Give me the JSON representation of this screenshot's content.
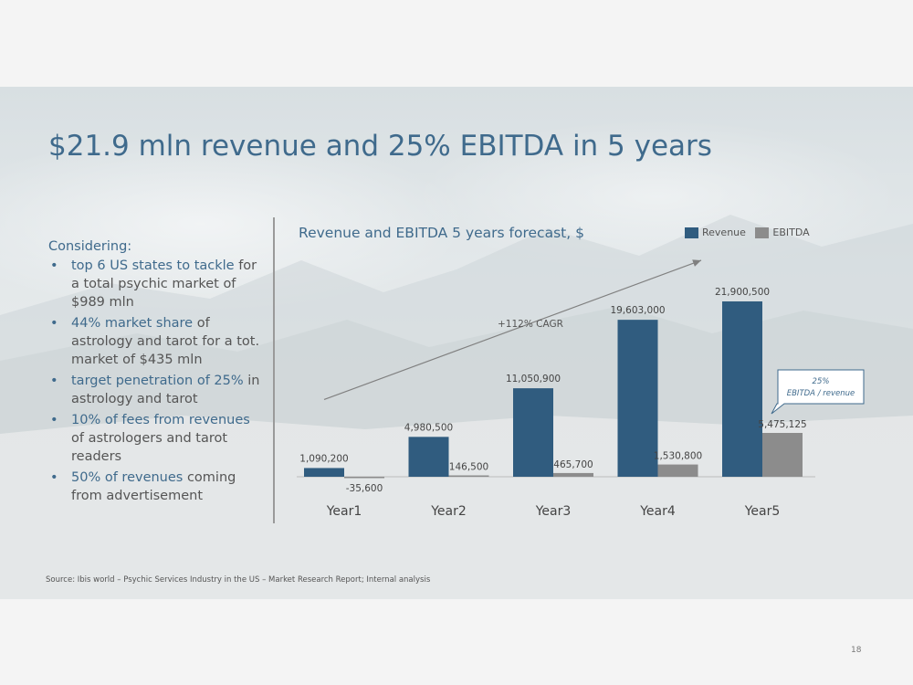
{
  "slide": {
    "title": "$21.9 mln revenue and 25% EBITDA in 5 years",
    "source": "Source: Ibis world – Psychic Services Industry in the US – Market Research Report; Internal analysis",
    "page_number": "18"
  },
  "left_panel": {
    "heading": "Considering:",
    "bullets": [
      {
        "highlight": "top 6 US states to tackle",
        "rest": " for a total psychic market of $989 mln"
      },
      {
        "highlight": "44% market share",
        "rest": " of astrology and tarot for a tot. market of $435 mln"
      },
      {
        "highlight": "target penetration of 25%",
        "rest": " in astrology and tarot"
      },
      {
        "highlight": "10% of fees from revenues",
        "rest": " of astrologers and tarot readers"
      },
      {
        "highlight": "50% of revenues",
        "rest": " coming from advertisement"
      }
    ]
  },
  "colors": {
    "revenue": "#305c7f",
    "ebitda": "#8c8c8c",
    "accent": "#3f6a8c",
    "text": "#555555"
  },
  "chart_data": {
    "type": "bar",
    "title": "Revenue and EBITDA 5 years forecast, $",
    "categories": [
      "Year1",
      "Year2",
      "Year3",
      "Year4",
      "Year5"
    ],
    "series": [
      {
        "name": "Revenue",
        "values": [
          1090200,
          4980500,
          11050900,
          19603000,
          21900500
        ]
      },
      {
        "name": "EBITDA",
        "values": [
          -35600,
          146500,
          465700,
          1530800,
          5475125
        ]
      }
    ],
    "data_labels": {
      "Revenue": [
        "1,090,200",
        "4,980,500",
        "11,050,900",
        "19,603,000",
        "21,900,500"
      ],
      "EBITDA": [
        "-35,600",
        "146,500",
        "465,700",
        "1,530,800",
        "5,475,125"
      ]
    },
    "legend": [
      "Revenue",
      "EBITDA"
    ],
    "legend_position": "top-right",
    "ylim": [
      0,
      21900500
    ],
    "grid": false,
    "annotations": {
      "cagr": "+112% CAGR",
      "callout_line1": "25%",
      "callout_line2": "EBITDA / revenue"
    }
  }
}
